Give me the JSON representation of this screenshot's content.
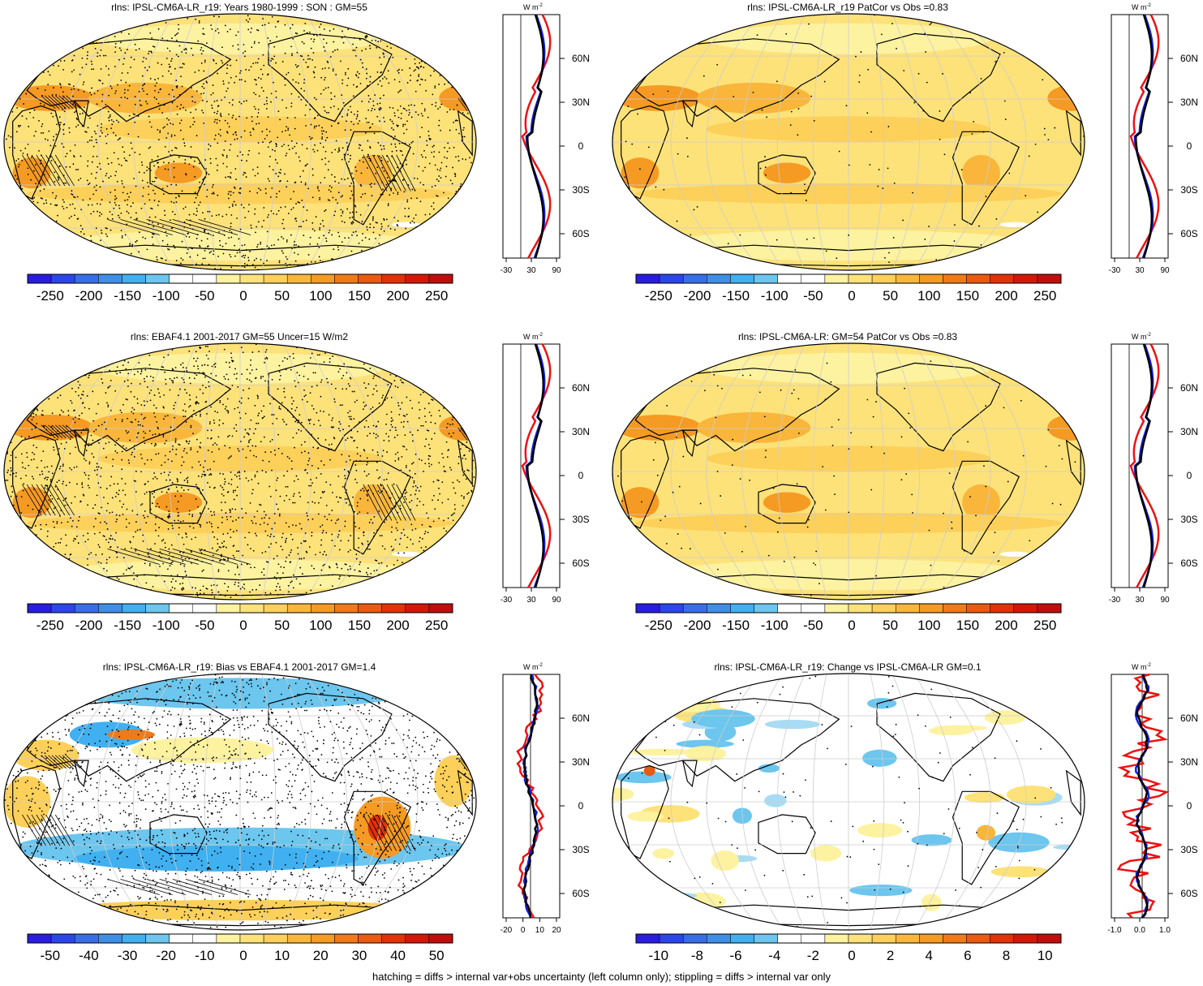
{
  "footnote": "hatching = diffs > internal var+obs uncertainty (left column only); stippling = diffs > internal var only",
  "zonal_unit": "W m",
  "zonal_unit_sup": "-2",
  "lat_labels": [
    "60N",
    "30N",
    "0",
    "30S",
    "60S"
  ],
  "colors": {
    "land_line": "#000000",
    "series_red": "#ee1111",
    "series_blue": "#1122dd",
    "series_black": "#000000"
  },
  "panels": [
    {
      "id": "p1",
      "title": "rlns: IPSL-CM6A-LR_r19: Years 1980-1999 : SON : GM=55",
      "kind": "abs",
      "stipple": "dense",
      "hatch": true,
      "cbar_labels": [
        "-250",
        "-200",
        "-150",
        "-100",
        "-50",
        "0",
        "50",
        "100",
        "150",
        "200",
        "250"
      ],
      "zonal_ticks": [
        "-30",
        "30",
        "90"
      ]
    },
    {
      "id": "p2",
      "title": "rlns: IPSL-CM6A-LR_r19 PatCor vs Obs =0.83",
      "kind": "abs",
      "stipple": "sparse",
      "hatch": false,
      "cbar_labels": [
        "-250",
        "-200",
        "-150",
        "-100",
        "-50",
        "0",
        "50",
        "100",
        "150",
        "200",
        "250"
      ],
      "zonal_ticks": [
        "-30",
        "30",
        "90"
      ]
    },
    {
      "id": "p3",
      "title": "rlns: EBAF4.1 2001-2017 GM=55 Uncer=15 W/m2",
      "kind": "abs",
      "stipple": "dense",
      "hatch": true,
      "cbar_labels": [
        "-250",
        "-200",
        "-150",
        "-100",
        "-50",
        "0",
        "50",
        "100",
        "150",
        "200",
        "250"
      ],
      "zonal_ticks": [
        "-30",
        "30",
        "90"
      ]
    },
    {
      "id": "p4",
      "title": "rlns: IPSL-CM6A-LR: GM=54 PatCor vs Obs =0.83",
      "kind": "abs",
      "stipple": "sparse",
      "hatch": false,
      "cbar_labels": [
        "-250",
        "-200",
        "-150",
        "-100",
        "-50",
        "0",
        "50",
        "100",
        "150",
        "200",
        "250"
      ],
      "zonal_ticks": [
        "-30",
        "30",
        "90"
      ]
    },
    {
      "id": "p5",
      "title": "rlns: IPSL-CM6A-LR_r19: Bias vs EBAF4.1 2001-2017  GM=1.4",
      "kind": "bias",
      "stipple": "dense",
      "hatch": true,
      "cbar_labels": [
        "-50",
        "-40",
        "-30",
        "-20",
        "-10",
        "0",
        "10",
        "20",
        "30",
        "40",
        "50"
      ],
      "zonal_ticks": [
        "-20",
        "0",
        "10",
        "20"
      ]
    },
    {
      "id": "p6",
      "title": "rlns: IPSL-CM6A-LR_r19: Change vs IPSL-CM6A-LR GM=0.1",
      "kind": "change",
      "stipple": "sparse",
      "hatch": false,
      "cbar_labels": [
        "-10",
        "-8",
        "-6",
        "-4",
        "-2",
        "0",
        "2",
        "4",
        "6",
        "8",
        "10"
      ],
      "zonal_ticks": [
        "-1.0",
        "0.0",
        "1.0"
      ]
    }
  ]
}
